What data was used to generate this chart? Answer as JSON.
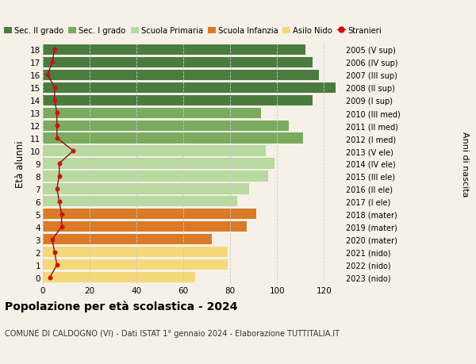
{
  "ages": [
    18,
    17,
    16,
    15,
    14,
    13,
    12,
    11,
    10,
    9,
    8,
    7,
    6,
    5,
    4,
    3,
    2,
    1,
    0
  ],
  "bar_values": [
    112,
    115,
    118,
    125,
    115,
    93,
    105,
    111,
    95,
    99,
    96,
    88,
    83,
    91,
    87,
    72,
    79,
    79,
    65
  ],
  "right_labels": [
    "2005 (V sup)",
    "2006 (IV sup)",
    "2007 (III sup)",
    "2008 (II sup)",
    "2009 (I sup)",
    "2010 (III med)",
    "2011 (II med)",
    "2012 (I med)",
    "2013 (V ele)",
    "2014 (IV ele)",
    "2015 (III ele)",
    "2016 (II ele)",
    "2017 (I ele)",
    "2018 (mater)",
    "2019 (mater)",
    "2020 (mater)",
    "2021 (nido)",
    "2022 (nido)",
    "2023 (nido)"
  ],
  "bar_colors": [
    "#4a7c3f",
    "#4a7c3f",
    "#4a7c3f",
    "#4a7c3f",
    "#4a7c3f",
    "#7aab5e",
    "#7aab5e",
    "#7aab5e",
    "#b8d9a0",
    "#b8d9a0",
    "#b8d9a0",
    "#b8d9a0",
    "#b8d9a0",
    "#d97a28",
    "#d97a28",
    "#d97a28",
    "#f5d87a",
    "#f5d87a",
    "#f5d87a"
  ],
  "stranieri_values": [
    5,
    4,
    2,
    5,
    5,
    6,
    6,
    6,
    13,
    7,
    7,
    6,
    7,
    8,
    8,
    4,
    5,
    6,
    3
  ],
  "legend_labels": [
    "Sec. II grado",
    "Sec. I grado",
    "Scuola Primaria",
    "Scuola Infanzia",
    "Asilo Nido",
    "Stranieri"
  ],
  "legend_colors": [
    "#4a7c3f",
    "#7aab5e",
    "#b8d9a0",
    "#d97a28",
    "#f5d87a",
    "#cc1111"
  ],
  "title": "Popolazione per età scolastica - 2024",
  "subtitle": "COMUNE DI CALDOGNO (VI) - Dati ISTAT 1° gennaio 2024 - Elaborazione TUTTITALIA.IT",
  "ylabel": "Età alunni",
  "right_ylabel": "Anni di nascita",
  "xlabel_vals": [
    0,
    20,
    40,
    60,
    80,
    100,
    120
  ],
  "xlim": [
    0,
    128
  ],
  "background_color": "#f5f0e8",
  "grid_color": "#cccccc"
}
